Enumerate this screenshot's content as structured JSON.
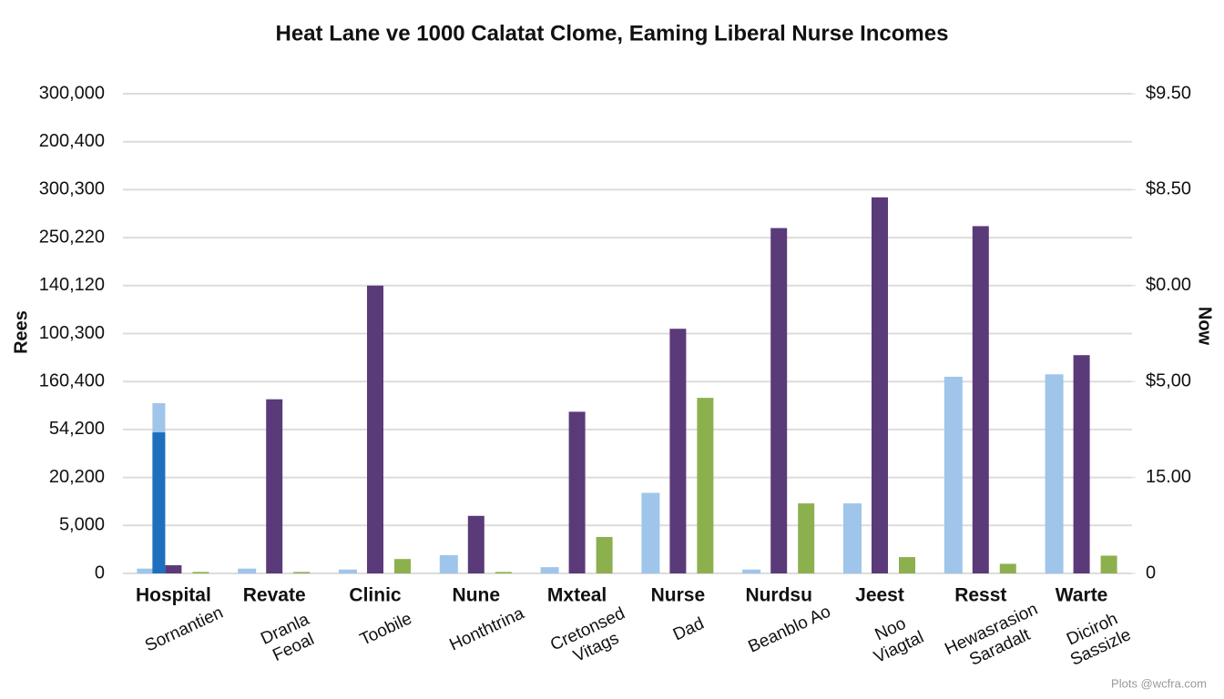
{
  "chart_data": {
    "type": "bar",
    "title": "Heat Lane ve 1000 Calatat Clome, Eaming Liberal Nurse Incomes",
    "y_label": "Rees",
    "y2_label": "Now",
    "watermark": "Plots @wcfra.com",
    "categories": [
      "Hospital",
      "Revate",
      "Clinic",
      "Nune",
      "Mxteal",
      "Nurse",
      "Nurdsu",
      "Jeest",
      "Resst",
      "Warte"
    ],
    "sublabels": [
      [
        "Sornantien"
      ],
      [
        "Dranla",
        "Feoal"
      ],
      [
        "Toobile"
      ],
      [
        "Honthtrina"
      ],
      [
        "Cretonsed",
        "Vitags"
      ],
      [
        "Dad"
      ],
      [
        "Beanblo Ao"
      ],
      [
        "Noo",
        "Viagtal"
      ],
      [
        "Hewasrasion",
        "Saradalt"
      ],
      [
        "Diciroh",
        "Sassizle"
      ]
    ],
    "ylim": [
      0,
      10
    ],
    "yticks": [
      0,
      {
        "value": 1,
        "label": "5,000"
      },
      {
        "value": 2,
        "label": "20,200"
      },
      {
        "value": 3,
        "label": "54,200"
      },
      {
        "value": 4,
        "label": "160,400"
      },
      {
        "value": 5,
        "label": "100,300"
      },
      {
        "value": 6,
        "label": "140,120"
      },
      {
        "value": 7,
        "label": "250,220"
      },
      {
        "value": 8,
        "label": "300,300"
      },
      {
        "value": 9,
        "label": "200,400"
      },
      {
        "value": 10,
        "label": "300,000"
      }
    ],
    "y2lim": [
      0,
      10
    ],
    "y2ticks": [
      0,
      {
        "value": 2,
        "label": "15.00"
      },
      {
        "value": 4,
        "label": "$5,00"
      },
      {
        "value": 6,
        "label": "$0.00"
      },
      {
        "value": 8,
        "label": "$8.50"
      },
      {
        "value": 10,
        "label": "$9.50"
      }
    ],
    "grid": true,
    "series": [
      {
        "color": "#9fc5ea",
        "values": [
          0.1,
          0.1,
          0.08,
          0.38,
          0.13,
          1.68,
          0.08,
          1.46,
          4.1,
          4.15
        ]
      },
      {
        "color": "#5b3a7a",
        "values": [
          0.17,
          3.63,
          6.0,
          1.2,
          3.37,
          5.1,
          7.2,
          7.84,
          7.24,
          4.55
        ]
      },
      {
        "color": "#8db04f",
        "values": [
          0.03,
          0.03,
          0.3,
          0.03,
          0.76,
          3.66,
          1.46,
          0.34,
          0.2,
          0.37
        ]
      },
      {
        "color": "#9fc5ea",
        "values": [
          3.55,
          null,
          null,
          null,
          null,
          null,
          null,
          null,
          null,
          null
        ]
      },
      {
        "color": "#1f6fbf",
        "values": [
          2.94,
          null,
          null,
          null,
          null,
          null,
          null,
          null,
          null,
          null
        ]
      }
    ]
  }
}
